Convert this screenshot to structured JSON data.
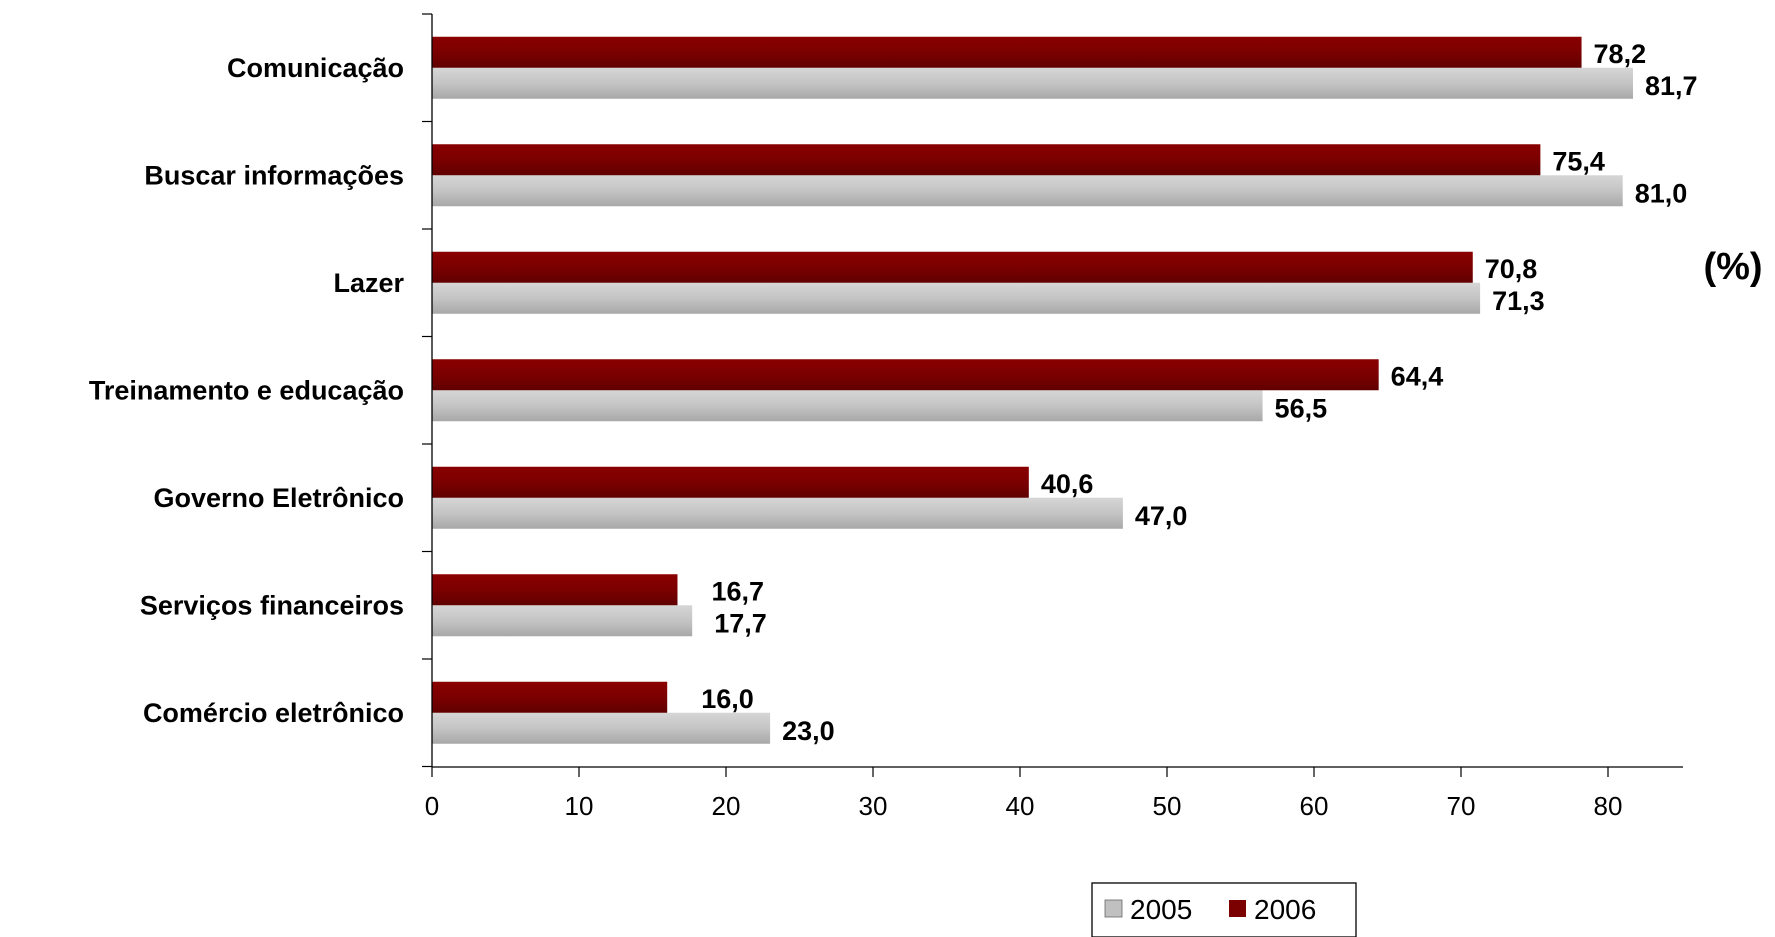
{
  "chart_data": {
    "type": "bar",
    "orientation": "horizontal",
    "categories": [
      "Comunicação",
      "Buscar informações",
      "Lazer",
      "Treinamento e educação",
      "Governo Eletrônico",
      "Serviços financeiros",
      "Comércio eletrônico"
    ],
    "series": [
      {
        "name": "2006",
        "color": "#7b0000",
        "values": [
          78.2,
          75.4,
          70.8,
          64.4,
          40.6,
          16.7,
          16.0
        ],
        "labels": [
          "78,2",
          "75,4",
          "70,8",
          "64,4",
          "40,6",
          "16,7",
          "16,0"
        ]
      },
      {
        "name": "2005",
        "color": "#c0c0c0",
        "values": [
          81.7,
          81.0,
          71.3,
          56.5,
          47.0,
          17.7,
          23.0
        ],
        "labels": [
          "81,7",
          "81,0",
          "71,3",
          "56,5",
          "47,0",
          "17,7",
          "23,0"
        ]
      }
    ],
    "xlim": [
      0,
      85
    ],
    "xticks": [
      "0",
      "10",
      "20",
      "30",
      "40",
      "50",
      "60",
      "70",
      "80"
    ],
    "unit_label": "(%)",
    "legend": {
      "position": "bottom",
      "entries": [
        "2005",
        "2006"
      ]
    },
    "grid": false
  }
}
